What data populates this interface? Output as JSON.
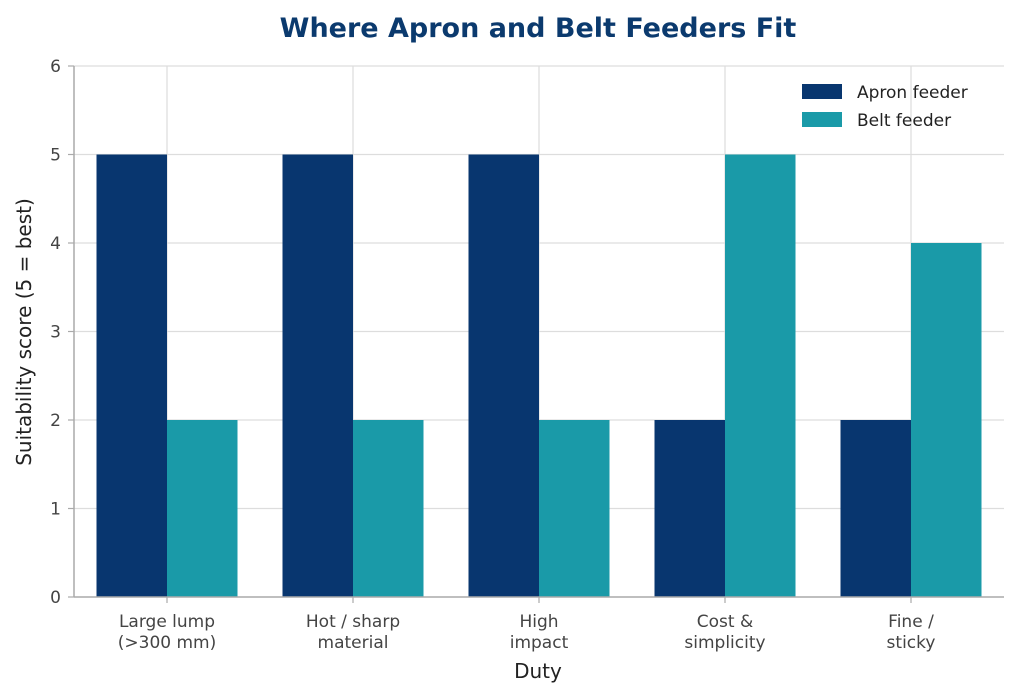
{
  "chart_data": {
    "type": "bar",
    "title": "Where Apron and Belt Feeders Fit",
    "xlabel": "Duty",
    "ylabel": "Suitability score (5 = best)",
    "categories": [
      [
        "Large lump",
        "(>300 mm)"
      ],
      [
        "Hot / sharp",
        "material"
      ],
      [
        "High",
        "impact"
      ],
      [
        "Cost &",
        "simplicity"
      ],
      [
        "Fine /",
        "sticky"
      ]
    ],
    "series": [
      {
        "name": "Apron feeder",
        "color": "#08366f",
        "values": [
          5,
          5,
          5,
          2,
          2
        ]
      },
      {
        "name": "Belt feeder",
        "color": "#1a9aa8",
        "values": [
          2,
          2,
          2,
          5,
          4
        ]
      }
    ],
    "ylim": [
      0,
      6
    ],
    "yticks": [
      0,
      1,
      2,
      3,
      4,
      5,
      6
    ],
    "grid": true,
    "legend_position": "top-right",
    "colors": {
      "title": "#0b3a6e",
      "grid": "#dddddd",
      "axis": "#aaaaaa"
    }
  }
}
